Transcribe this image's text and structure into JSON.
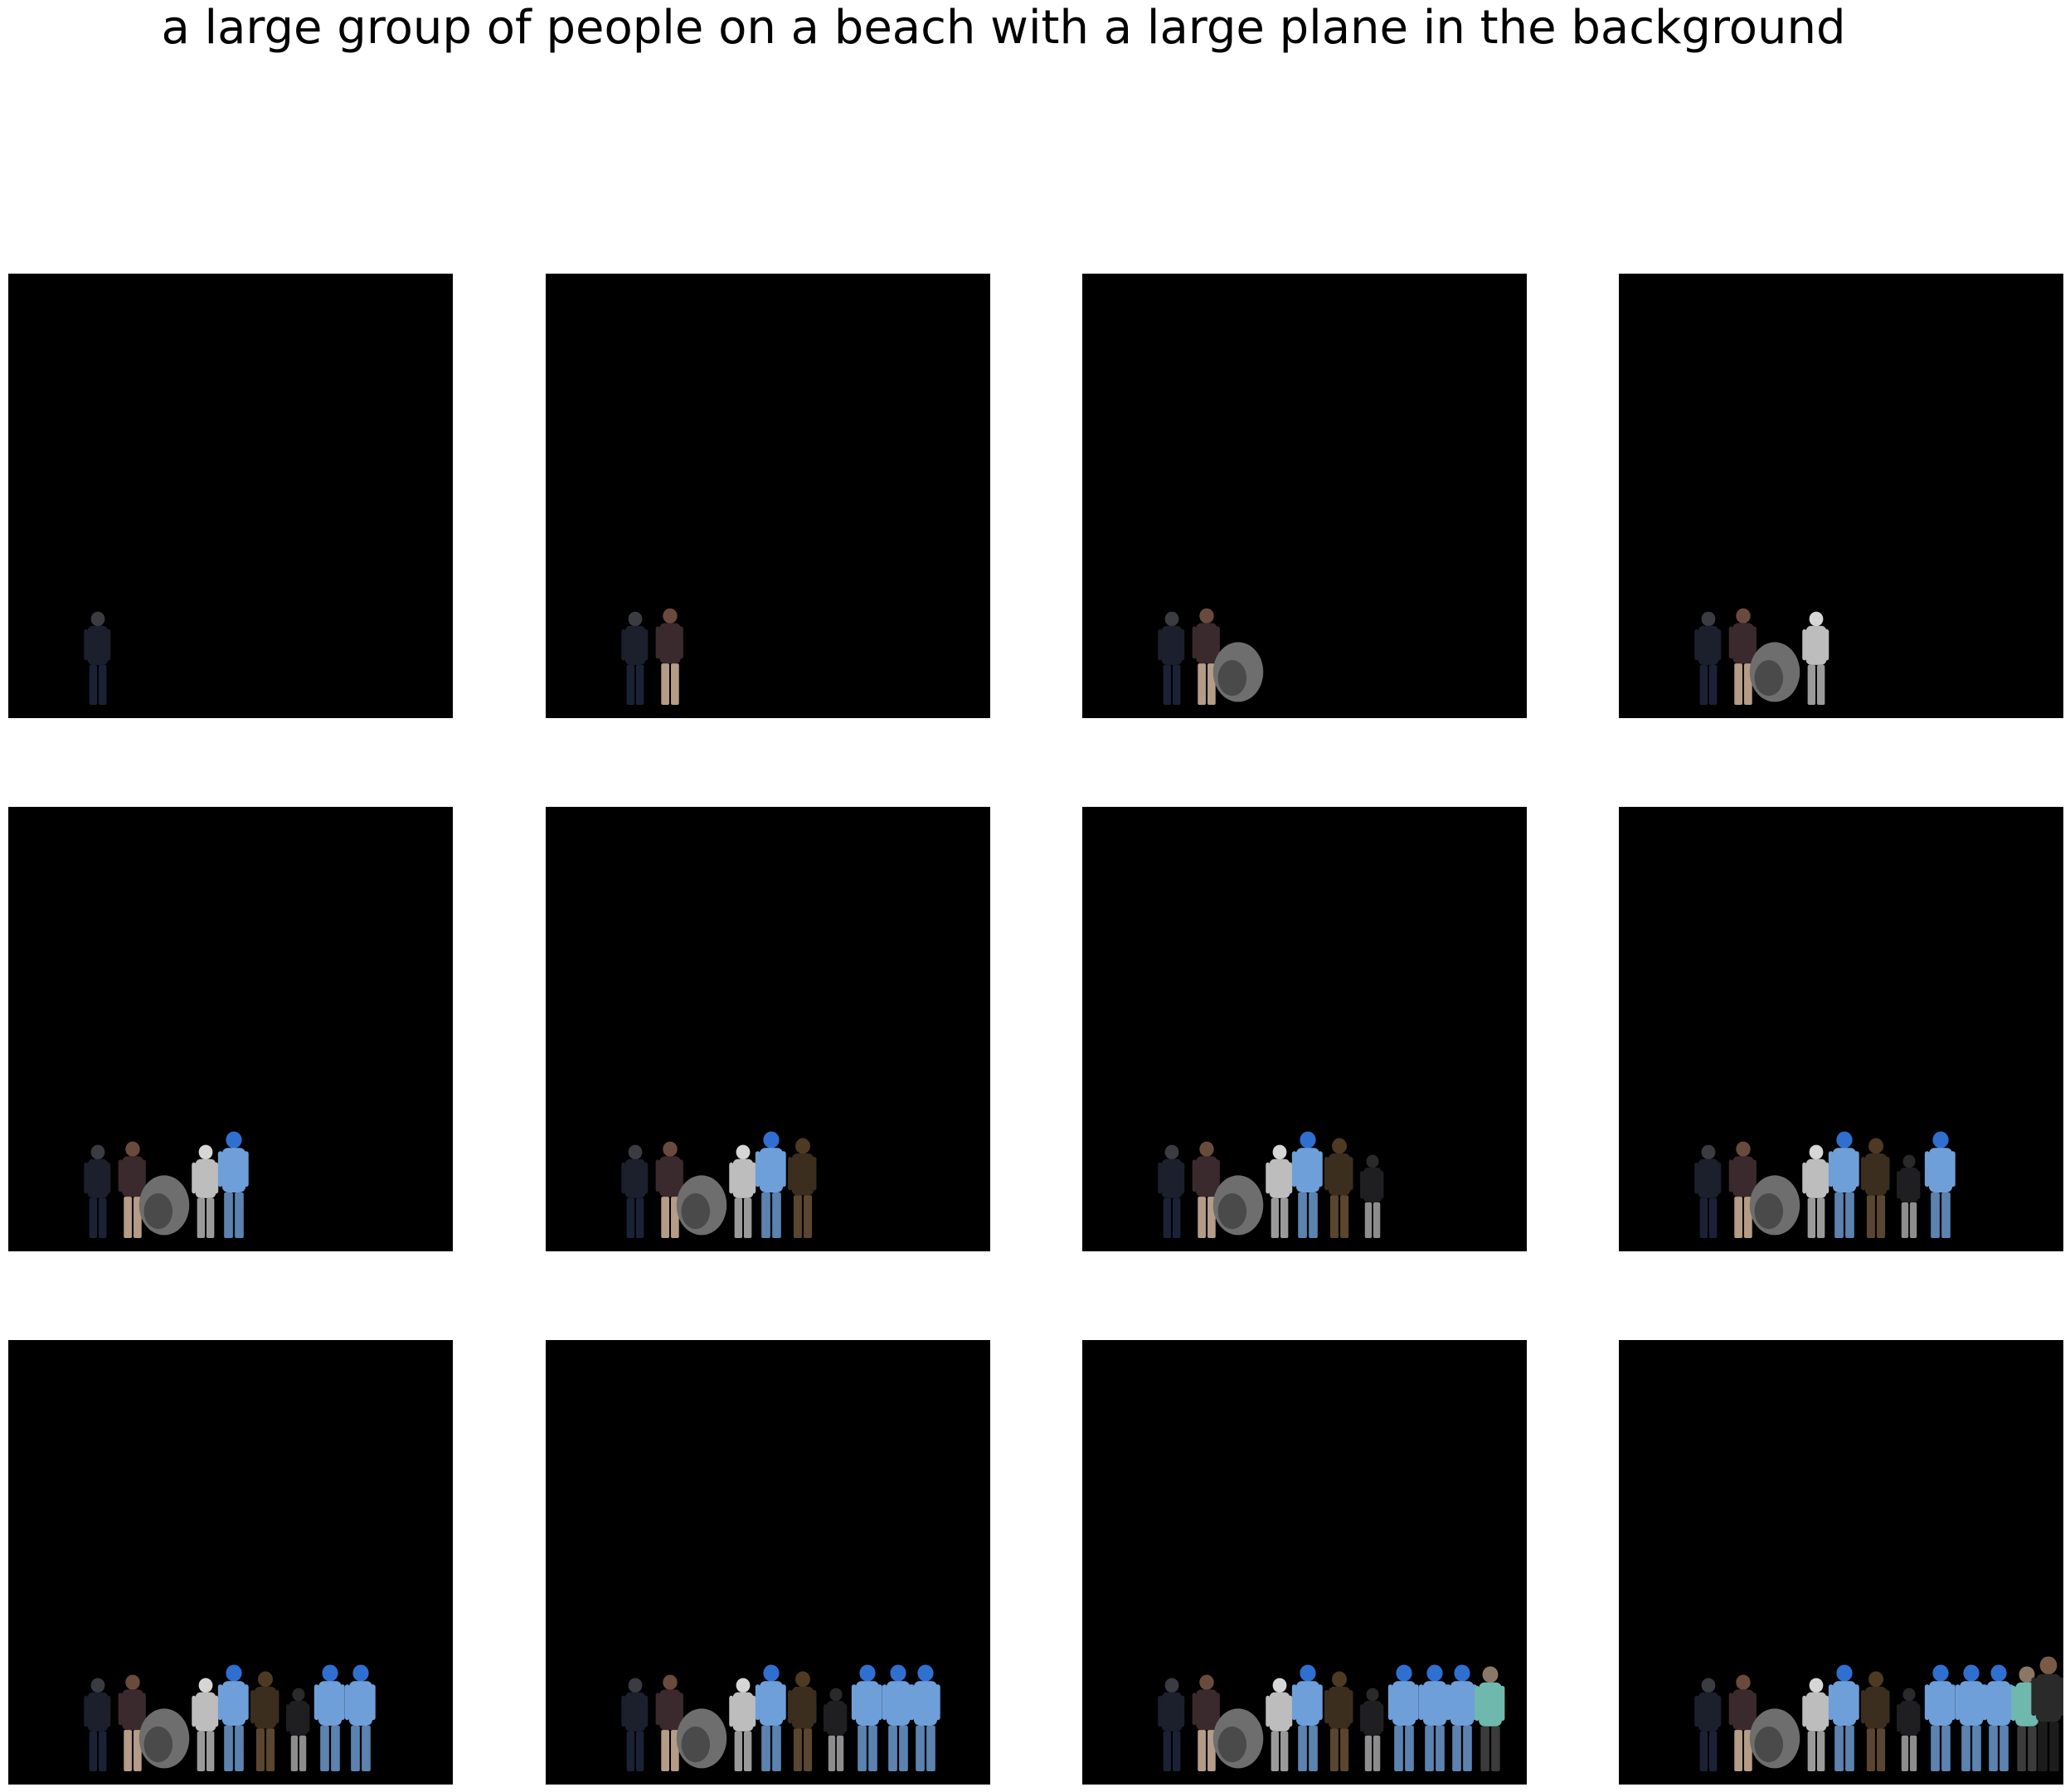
{
  "caption": "a large group of people on a beach with a large plane in the background",
  "colors": {
    "page_background": "#ffffff",
    "panel_background": "#000000"
  },
  "grid": {
    "rows": 3,
    "columns": 4,
    "panel_count": 12
  },
  "figures": [
    {
      "kind": "person",
      "palette": {
        "head": "#3b3b42",
        "torso": "#1c1f2c",
        "legs": "#1b2236"
      }
    },
    {
      "kind": "person",
      "palette": {
        "head": "#6a4a3c",
        "torso": "#3a2a2e",
        "legs": "#b59c86"
      }
    },
    {
      "kind": "blob",
      "palette": {
        "body": "#6e6e6e",
        "shade": "#4a4a4a"
      }
    },
    {
      "kind": "person",
      "palette": {
        "head": "#d6d6d6",
        "torso": "#bdbdbd",
        "legs": "#9a9a9a"
      }
    },
    {
      "kind": "person",
      "palette": {
        "head": "#2f6fd0",
        "torso": "#6f9fd8",
        "legs": "#5c82b0"
      }
    },
    {
      "kind": "person",
      "palette": {
        "head": "#4e3922",
        "torso": "#3c2e1e",
        "legs": "#5a4630"
      }
    },
    {
      "kind": "person",
      "palette": {
        "head": "#2a2a2a",
        "torso": "#1f1f22",
        "legs": "#8d8d8d"
      }
    },
    {
      "kind": "person",
      "palette": {
        "head": "#2f6fd0",
        "torso": "#6f9fd8",
        "legs": "#5c82b0"
      }
    },
    {
      "kind": "person",
      "palette": {
        "head": "#2f6fd0",
        "torso": "#6f9fd8",
        "legs": "#5c82b0"
      }
    },
    {
      "kind": "person",
      "palette": {
        "head": "#2f6fd0",
        "torso": "#6f9fd8",
        "legs": "#5c82b0"
      }
    },
    {
      "kind": "person",
      "palette": {
        "head": "#8b7766",
        "torso": "#6fb8ad",
        "legs": "#3b3b3b"
      }
    },
    {
      "kind": "person",
      "palette": {
        "head": "#7a5a45",
        "torso": "#2a2a2a",
        "legs": "#1c1c1c"
      }
    }
  ],
  "panels": [
    {
      "visible_figures": 1
    },
    {
      "visible_figures": 2
    },
    {
      "visible_figures": 3
    },
    {
      "visible_figures": 4
    },
    {
      "visible_figures": 5
    },
    {
      "visible_figures": 6
    },
    {
      "visible_figures": 7
    },
    {
      "visible_figures": 8
    },
    {
      "visible_figures": 9
    },
    {
      "visible_figures": 10
    },
    {
      "visible_figures": 11
    },
    {
      "visible_figures": 12
    }
  ]
}
